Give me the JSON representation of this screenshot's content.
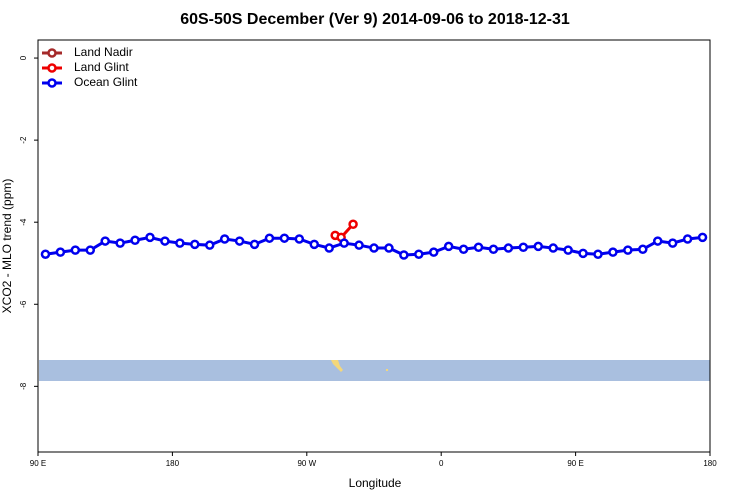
{
  "chart_data": {
    "type": "line",
    "title": "60S-50S December (Ver 9)   2014-09-06 to 2018-12-31",
    "x_label": "Longitude",
    "y_label": "XCO2 - MLO trend (ppm)",
    "xlim": [
      90,
      540
    ],
    "xticks": [
      {
        "value": 90,
        "label": "90 E"
      },
      {
        "value": 180,
        "label": "180"
      },
      {
        "value": 270,
        "label": "90 W"
      },
      {
        "value": 360,
        "label": "0"
      },
      {
        "value": 450,
        "label": "90 E"
      },
      {
        "value": 540,
        "label": "180"
      }
    ],
    "ylim": [
      -9.6,
      0.44
    ],
    "yticks": [
      0,
      -2,
      -4,
      -6,
      -8
    ],
    "legend": "top-left",
    "series": [
      {
        "name": "Land Nadir",
        "color": "#a52a2a",
        "x": [],
        "values": []
      },
      {
        "name": "Land Glint",
        "color": "#ee0000",
        "x": [
          289,
          293,
          301
        ],
        "values": [
          -4.32,
          -4.37,
          -4.05
        ]
      },
      {
        "name": "Ocean Glint",
        "color": "#0000ee",
        "x": [
          95,
          105,
          115,
          125,
          135,
          145,
          155,
          165,
          175,
          185,
          195,
          205,
          215,
          225,
          235,
          245,
          255,
          265,
          275,
          285,
          295,
          305,
          315,
          325,
          335,
          345,
          355,
          365,
          375,
          385,
          395,
          405,
          415,
          425,
          435,
          445,
          455,
          465,
          475,
          485,
          495,
          505,
          515,
          525,
          535
        ],
        "values": [
          -4.78,
          -4.73,
          -4.68,
          -4.68,
          -4.46,
          -4.51,
          -4.44,
          -4.37,
          -4.46,
          -4.51,
          -4.54,
          -4.56,
          -4.41,
          -4.46,
          -4.54,
          -4.39,
          -4.39,
          -4.41,
          -4.54,
          -4.63,
          -4.51,
          -4.56,
          -4.63,
          -4.63,
          -4.8,
          -4.78,
          -4.73,
          -4.59,
          -4.66,
          -4.61,
          -4.66,
          -4.63,
          -4.61,
          -4.59,
          -4.63,
          -4.68,
          -4.76,
          -4.78,
          -4.73,
          -4.68,
          -4.66,
          -4.46,
          -4.51,
          -4.41,
          -4.37
        ]
      }
    ]
  }
}
